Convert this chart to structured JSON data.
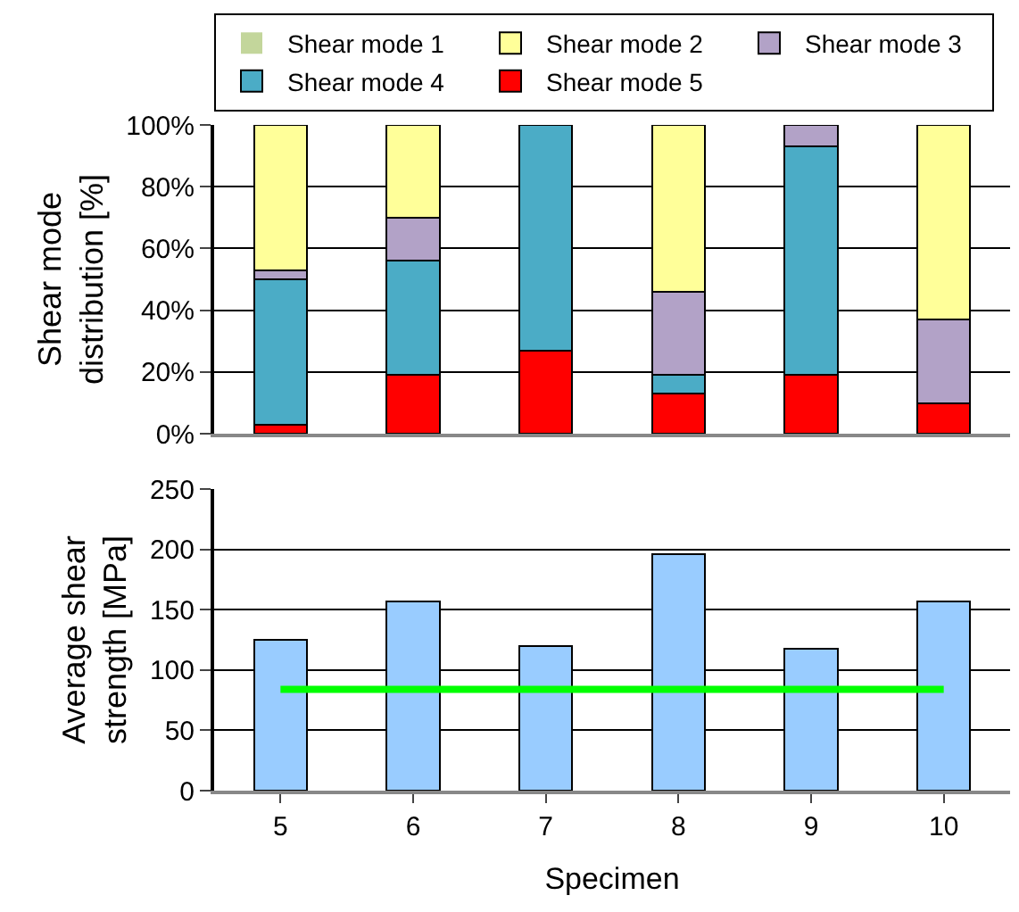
{
  "chart_data": [
    {
      "type": "bar",
      "stacked": true,
      "categories": [
        "5",
        "6",
        "7",
        "8",
        "9",
        "10"
      ],
      "ylabel": "Shear mode distribution [%]",
      "ylim": [
        0,
        100
      ],
      "yticks": [
        {
          "value": 0,
          "label": "0%"
        },
        {
          "value": 20,
          "label": "20%"
        },
        {
          "value": 40,
          "label": "40%"
        },
        {
          "value": 60,
          "label": "60%"
        },
        {
          "value": 80,
          "label": "80%"
        },
        {
          "value": 100,
          "label": "100%"
        }
      ],
      "grid": "y",
      "legend": "top",
      "tick_labels": "y",
      "series": [
        {
          "name": "Shear mode 5",
          "color": "#ff0000",
          "values": [
            3,
            19,
            27,
            13,
            19,
            10
          ]
        },
        {
          "name": "Shear mode 4",
          "color": "#4bacc6",
          "values": [
            47,
            37,
            73,
            6,
            74,
            0
          ]
        },
        {
          "name": "Shear mode 3",
          "color": "#b2a2c7",
          "values": [
            3,
            14,
            0,
            27,
            7,
            27
          ]
        },
        {
          "name": "Shear mode 2",
          "color": "#ffff99",
          "values": [
            47,
            30,
            0,
            54,
            0,
            63
          ]
        },
        {
          "name": "Shear mode 1",
          "color": "#c3d69b",
          "values": [
            0,
            0,
            0,
            0,
            0,
            0
          ]
        }
      ]
    },
    {
      "type": "bar",
      "categories": [
        "5",
        "6",
        "7",
        "8",
        "9",
        "10"
      ],
      "xlabel": "Specimen",
      "ylabel": "Average shear strength [MPa]",
      "ylim": [
        0,
        250
      ],
      "yticks": [
        0,
        50,
        100,
        150,
        200,
        250
      ],
      "grid": "y",
      "legend": false,
      "series": [
        {
          "color": "#99ccff",
          "values": [
            125,
            157,
            120,
            196,
            118,
            157
          ]
        },
        {
          "type": "line",
          "color": "#00ff00",
          "values": [
            84,
            84,
            84,
            84,
            84,
            84
          ]
        }
      ]
    }
  ]
}
